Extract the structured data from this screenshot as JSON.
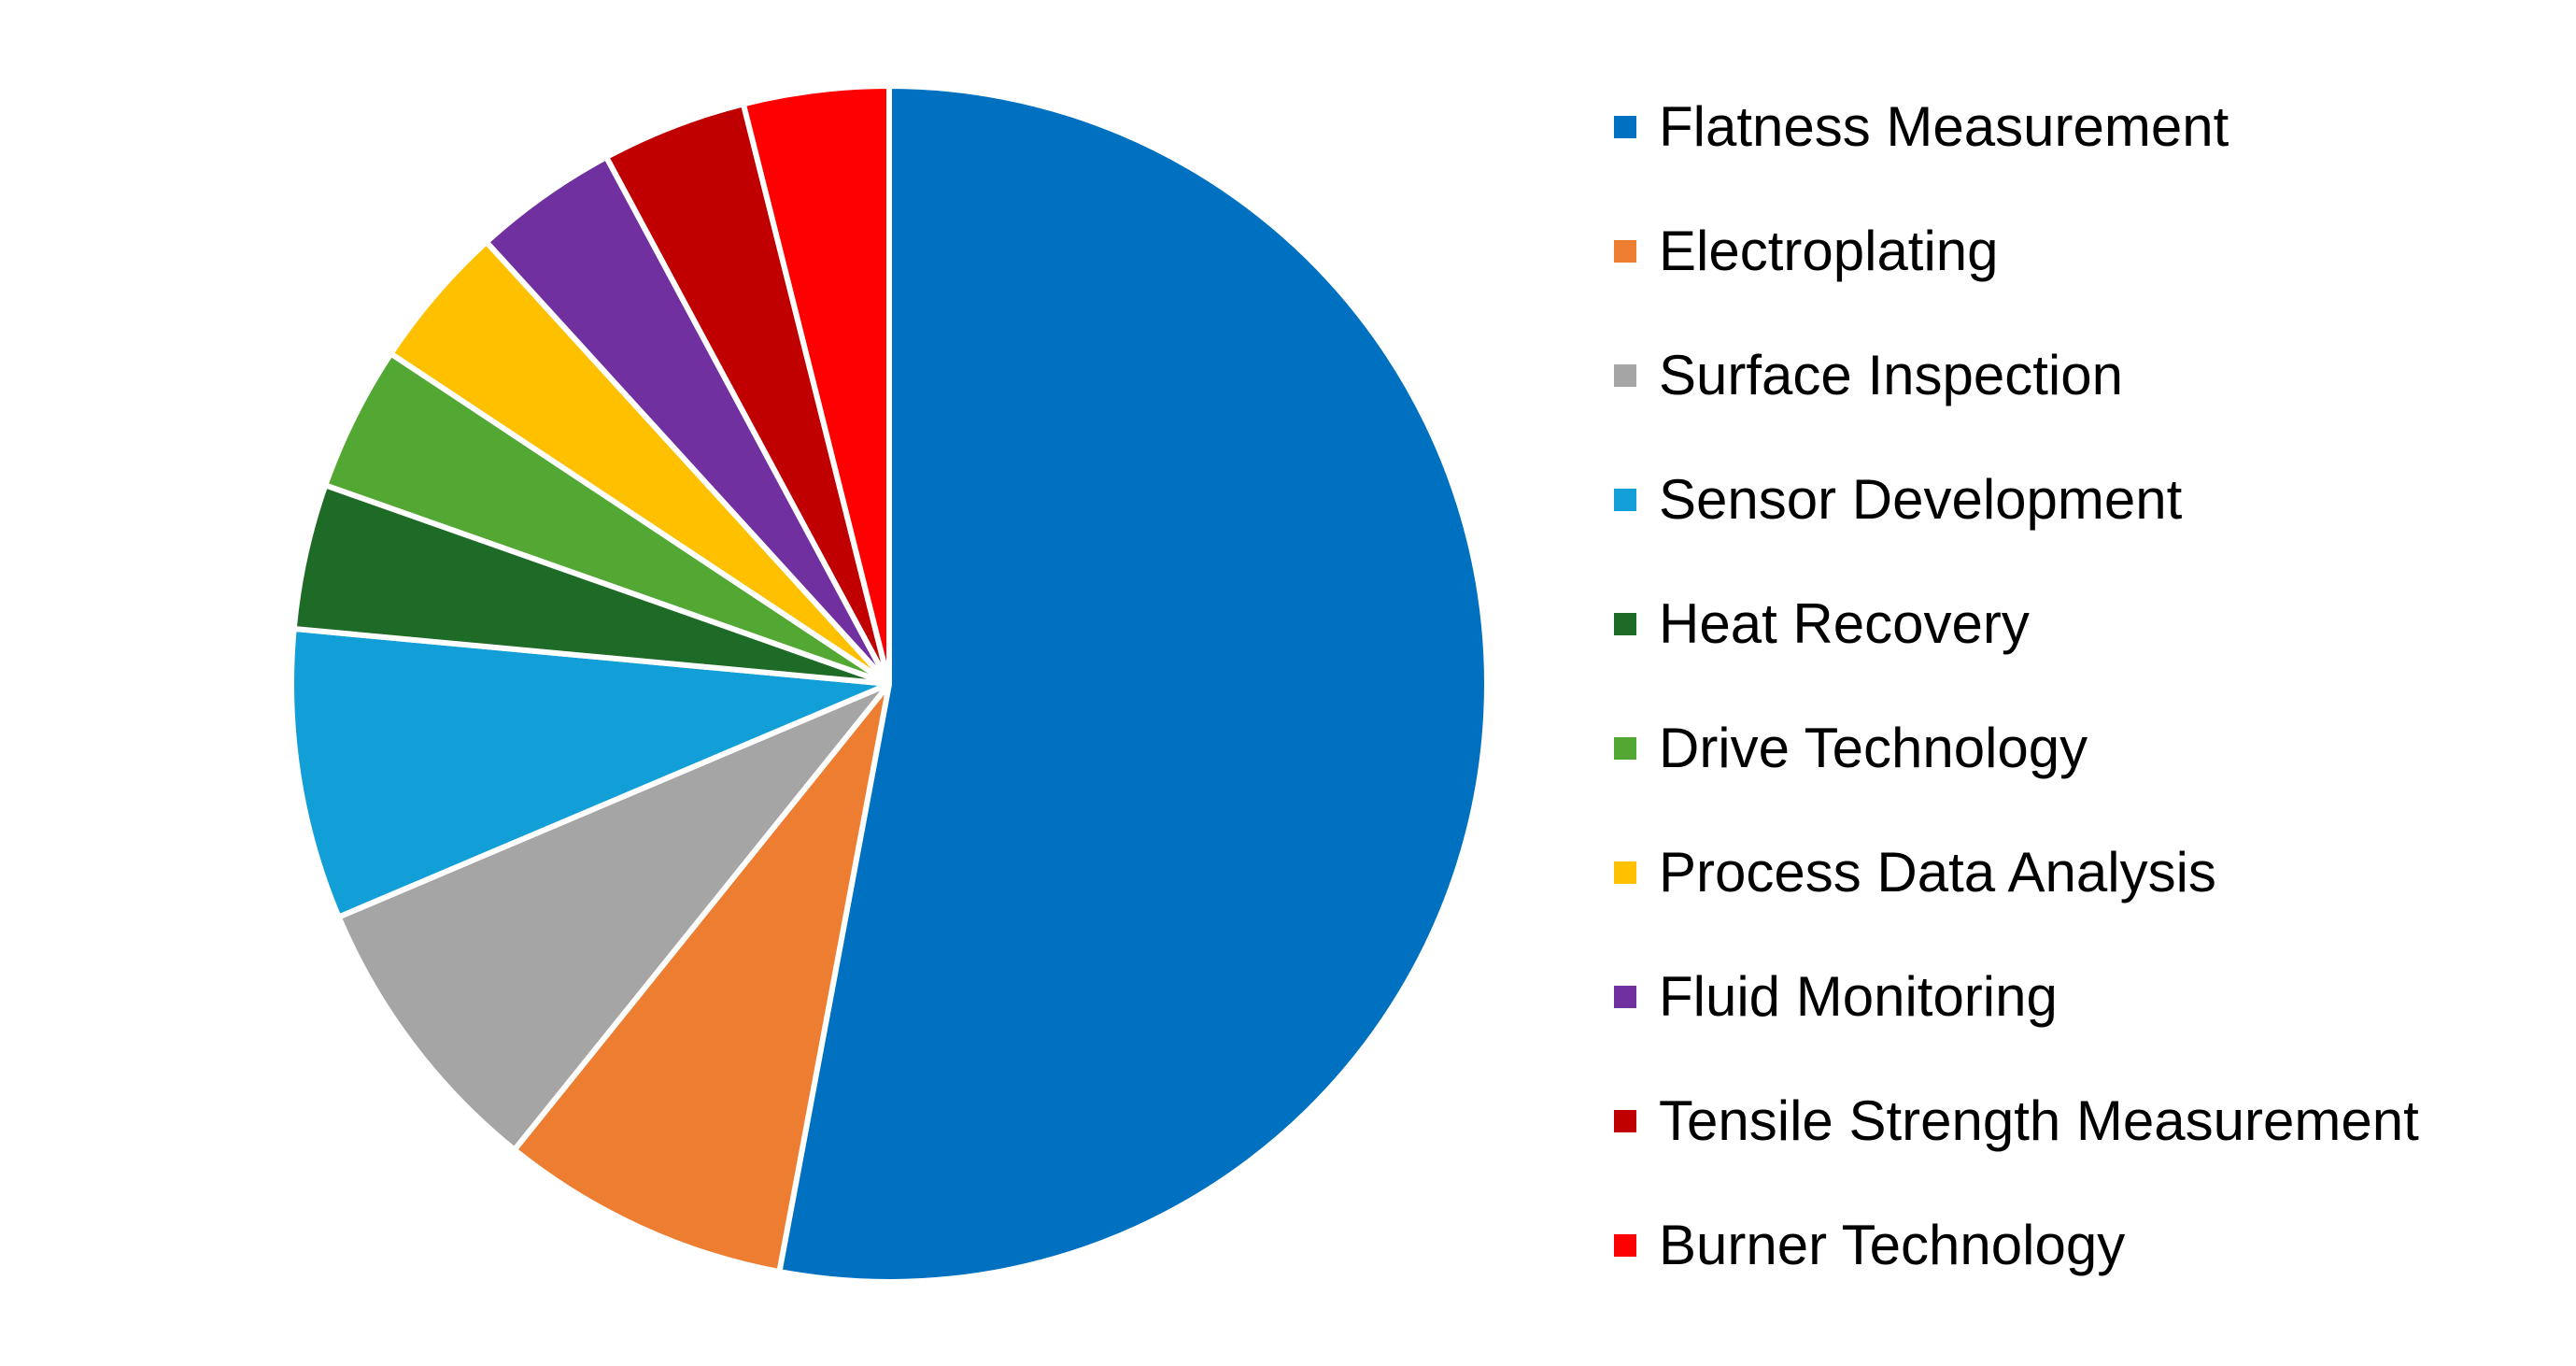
{
  "chart_data": {
    "type": "pie",
    "start_angle_deg": 0,
    "direction": "clockwise",
    "legend_position": "right",
    "slices": [
      {
        "label": "Flatness Measurement",
        "value": 54,
        "color": "#0070C0"
      },
      {
        "label": "Electroplating",
        "value": 8,
        "color": "#ED7D31"
      },
      {
        "label": "Surface Inspection",
        "value": 8,
        "color": "#A5A5A5"
      },
      {
        "label": "Sensor Development",
        "value": 8,
        "color": "#129FD8"
      },
      {
        "label": "Heat Recovery",
        "value": 4,
        "color": "#1E6B27"
      },
      {
        "label": "Drive Technology",
        "value": 4,
        "color": "#52A833"
      },
      {
        "label": "Process Data Analysis",
        "value": 4,
        "color": "#FFC000"
      },
      {
        "label": "Fluid Monitoring",
        "value": 4,
        "color": "#7030A0"
      },
      {
        "label": "Tensile Strength Measurement",
        "value": 4,
        "color": "#C00000"
      },
      {
        "label": "Burner Technology",
        "value": 4,
        "color": "#FF0000"
      }
    ]
  }
}
